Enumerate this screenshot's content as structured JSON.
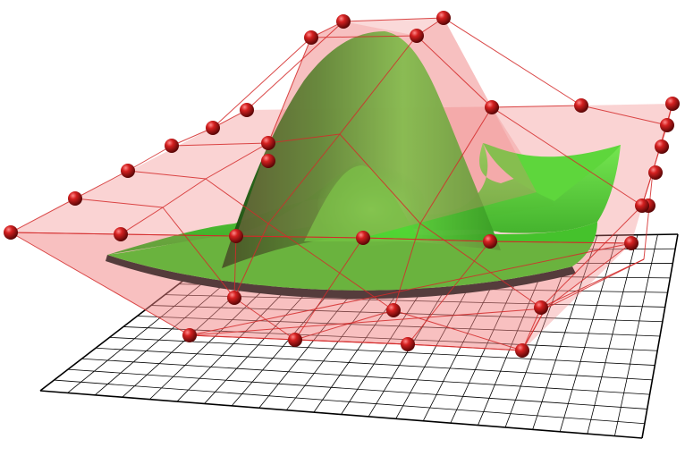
{
  "scene": {
    "colors": {
      "background": "#ffffff",
      "grid_line": "#000000",
      "cage_fill": "#f08080",
      "cage_line": "#d42a2a",
      "control_point": "#c81414",
      "surface_light": "#6fe84a",
      "surface_mid": "#3fbf2a",
      "surface_dark": "#1f5a14",
      "surface_shadow": "#2a2a2a"
    },
    "grid": {
      "rows": 14,
      "cols": 22
    },
    "control_net": {
      "rows": 6,
      "cols": 6
    }
  }
}
